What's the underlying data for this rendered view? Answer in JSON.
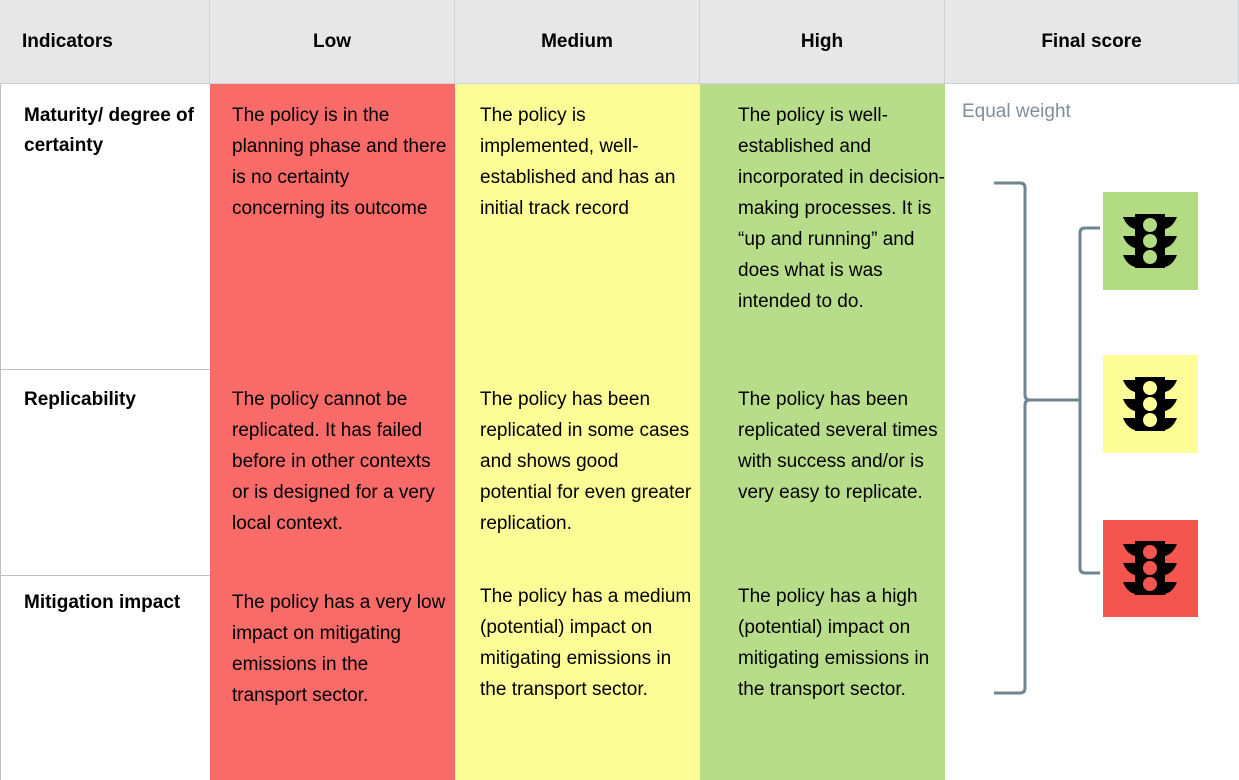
{
  "table": {
    "header": [
      "Indicators",
      "Low",
      "Medium",
      "High",
      "Final score"
    ],
    "rows": [
      {
        "indicator": "Maturity/ degree of certainty",
        "cells": [
          "The policy is in the planning phase and there is no certainty concerning its outcome",
          "The policy is implemented, well-established and has an initial track record",
          "The policy is well-established and incorporated in decision-making processes. It is “up and running” and does what is was intended to do."
        ]
      },
      {
        "indicator": "Replicability",
        "cells": [
          "The policy cannot be replicated. It has failed before in other contexts or is designed for a very local context.",
          "The policy has been replicated in some cases and shows good potential for even greater replication.",
          "The policy has been replicated several times with success and/or is very easy to replicate."
        ]
      },
      {
        "indicator": "Mitigation impact",
        "cells": [
          "The policy has a very low impact on mitigating emissions in the transport sector.",
          "The policy has a medium (potential) impact on mitigating emissions in the transport sector.",
          "The policy has a high (potential) impact on mitigating emissions in the transport sector."
        ]
      }
    ],
    "final_score_note": "Equal weight"
  }
}
